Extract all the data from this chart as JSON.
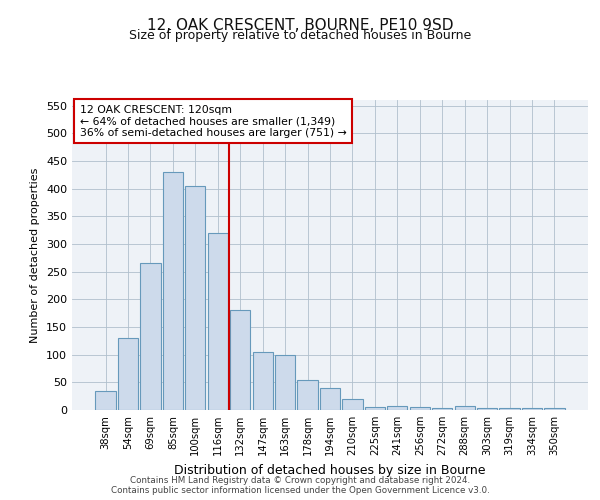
{
  "title": "12, OAK CRESCENT, BOURNE, PE10 9SD",
  "subtitle": "Size of property relative to detached houses in Bourne",
  "xlabel": "Distribution of detached houses by size in Bourne",
  "ylabel": "Number of detached properties",
  "categories": [
    "38sqm",
    "54sqm",
    "69sqm",
    "85sqm",
    "100sqm",
    "116sqm",
    "132sqm",
    "147sqm",
    "163sqm",
    "178sqm",
    "194sqm",
    "210sqm",
    "225sqm",
    "241sqm",
    "256sqm",
    "272sqm",
    "288sqm",
    "303sqm",
    "319sqm",
    "334sqm",
    "350sqm"
  ],
  "values": [
    35,
    130,
    265,
    430,
    405,
    320,
    180,
    105,
    100,
    55,
    40,
    20,
    5,
    8,
    5,
    3,
    7,
    3,
    3,
    3,
    3
  ],
  "bar_color": "#cddaeb",
  "bar_edge_color": "#6699bb",
  "red_line_x": 5.5,
  "annotation_line1": "12 OAK CRESCENT: 120sqm",
  "annotation_line2": "← 64% of detached houses are smaller (1,349)",
  "annotation_line3": "36% of semi-detached houses are larger (751) →",
  "annotation_box_color": "#ffffff",
  "annotation_box_edge": "#cc0000",
  "red_line_color": "#cc0000",
  "ylim": [
    0,
    560
  ],
  "yticks": [
    0,
    50,
    100,
    150,
    200,
    250,
    300,
    350,
    400,
    450,
    500,
    550
  ],
  "bg_color": "#eef2f7",
  "title_fontsize": 11,
  "subtitle_fontsize": 9,
  "footer1": "Contains HM Land Registry data © Crown copyright and database right 2024.",
  "footer2": "Contains public sector information licensed under the Open Government Licence v3.0."
}
